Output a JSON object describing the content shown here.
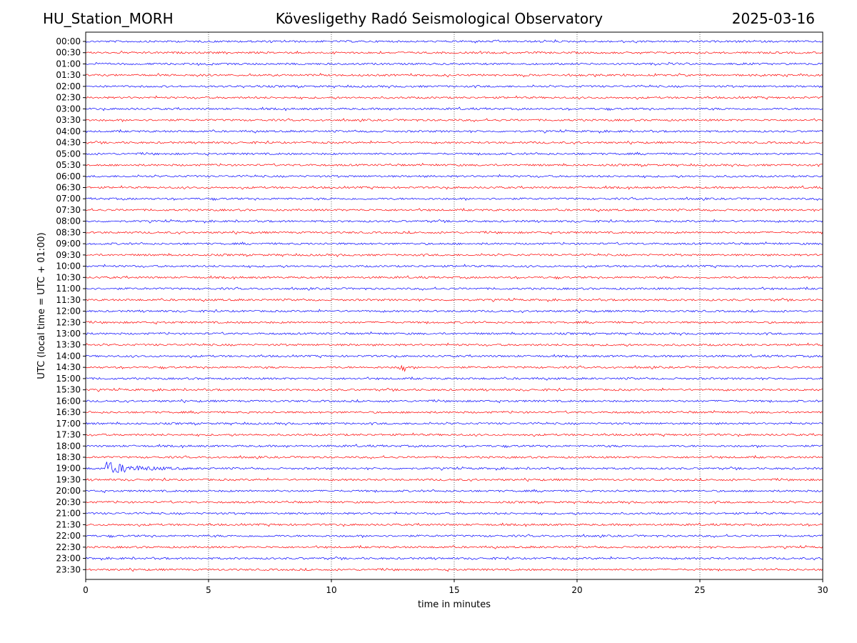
{
  "header": {
    "station": "HU_Station_MORH",
    "observatory": "Kövesligethy Radó Seismological Observatory",
    "date": "2025-03-16"
  },
  "colors": {
    "even_trace": "#0000ff",
    "odd_trace": "#ff0000",
    "grid": "#000000"
  },
  "chart_data": {
    "type": "line",
    "xlabel": "time in minutes",
    "ylabel": "UTC (local time = UTC + 01:00)",
    "xlim": [
      0,
      30
    ],
    "x_ticks": [
      "0",
      "5",
      "10",
      "15",
      "20",
      "25",
      "30"
    ],
    "grid": "vertical dotted lines at each x tick",
    "row_labels": [
      "00:00",
      "00:30",
      "01:00",
      "01:30",
      "02:00",
      "02:30",
      "03:00",
      "03:30",
      "04:00",
      "04:30",
      "05:00",
      "05:30",
      "06:00",
      "06:30",
      "07:00",
      "07:30",
      "08:00",
      "08:30",
      "09:00",
      "09:30",
      "10:00",
      "10:30",
      "11:00",
      "11:30",
      "12:00",
      "12:30",
      "13:00",
      "13:30",
      "14:00",
      "14:30",
      "15:00",
      "15:30",
      "16:00",
      "16:30",
      "17:00",
      "17:30",
      "18:00",
      "18:30",
      "19:00",
      "19:30",
      "20:00",
      "20:30",
      "21:00",
      "21:30",
      "22:00",
      "22:30",
      "23:00",
      "23:30"
    ],
    "trace_color_pattern": [
      "blue",
      "red"
    ],
    "events": [
      {
        "row": "19:00",
        "start_minute": 0.8,
        "end_minute": 4.2,
        "description": "earthquake arrival, strong coda"
      },
      {
        "row": "14:30",
        "start_minute": 12.7,
        "end_minute": 13.0,
        "description": "small spike"
      }
    ]
  }
}
